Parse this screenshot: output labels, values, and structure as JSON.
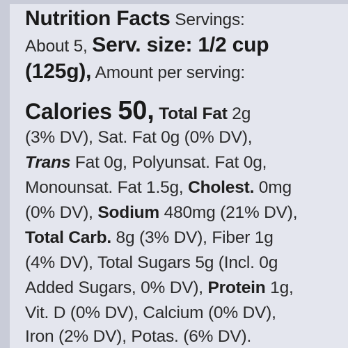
{
  "label": {
    "l1": {
      "title": "Nutrition Facts",
      "servings_label": " Servings:"
    },
    "l2": {
      "about": "About 5, ",
      "serv_size": "Serv. size: 1/2 cup"
    },
    "l3": {
      "grams": "(125g),",
      "amount": " Amount per serving:"
    },
    "l4": {
      "calories_label": "Calories ",
      "calories_value": "50,",
      "total_fat_label": " Total Fat",
      "total_fat_value": " 2g"
    },
    "l5": {
      "text": "(3% DV), Sat. Fat 0g (0% DV),"
    },
    "l6": {
      "trans_label": "Trans",
      "trans_rest": " Fat 0g, Polyunsat. Fat 0g,"
    },
    "l7": {
      "mono": "Monounsat. Fat 1.5g, ",
      "cholest_label": "Cholest.",
      "cholest_value": " 0mg"
    },
    "l8": {
      "dv": "(0% DV), ",
      "sodium_label": "Sodium",
      "sodium_value": " 480mg (21% DV),"
    },
    "l9": {
      "carb_label": "Total Carb.",
      "carb_value": " 8g (3% DV), Fiber 1g"
    },
    "l10": {
      "text": "(4% DV), Total Sugars 5g (Incl. 0g"
    },
    "l11": {
      "added": "Added Sugars, 0% DV), ",
      "protein_label": "Protein",
      "protein_value": " 1g,"
    },
    "l12": {
      "text": "Vit. D (0% DV), Calcium (0% DV),"
    },
    "l13": {
      "text": "Iron (2% DV), Potas. (6% DV)."
    }
  }
}
